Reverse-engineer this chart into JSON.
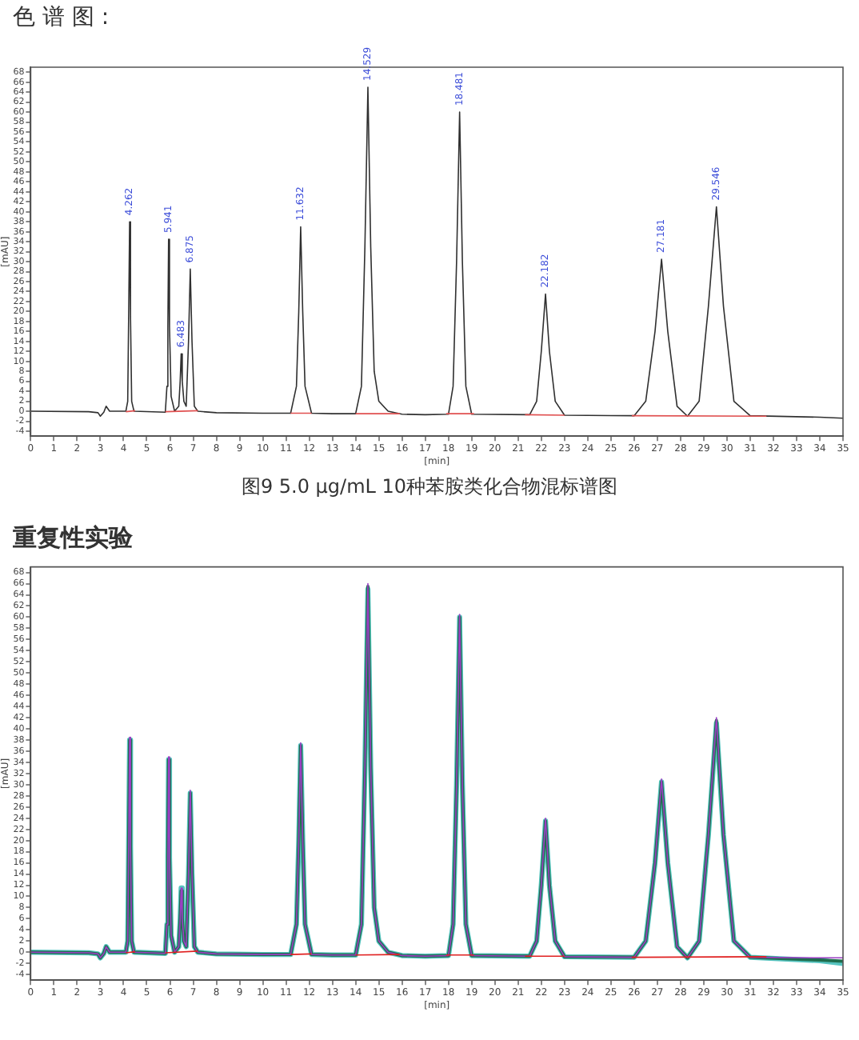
{
  "chart_data": [
    {
      "type": "line",
      "title": "色 谱 图 :",
      "xlabel": "[min]",
      "ylabel": "[mAU]",
      "xlim": [
        0,
        35
      ],
      "xticks": [
        0,
        1,
        2,
        3,
        4,
        5,
        6,
        7,
        8,
        9,
        10,
        11,
        12,
        13,
        14,
        15,
        16,
        17,
        18,
        19,
        20,
        21,
        22,
        23,
        24,
        25,
        26,
        27,
        28,
        29,
        30,
        31,
        32,
        33,
        34,
        35
      ],
      "ylim": [
        -5,
        69
      ],
      "yticks": [
        -4,
        -2,
        0,
        2,
        4,
        6,
        8,
        10,
        12,
        14,
        16,
        18,
        20,
        22,
        24,
        26,
        28,
        30,
        32,
        34,
        36,
        38,
        40,
        42,
        44,
        46,
        48,
        50,
        52,
        54,
        56,
        58,
        60,
        62,
        64,
        66,
        68
      ],
      "grid": false,
      "legend": false,
      "marker": "none",
      "line_style": "solid",
      "x": [
        0,
        2.5,
        2.9,
        3.0,
        3.15,
        3.25,
        3.4,
        4.1,
        4.18,
        4.22,
        4.262,
        4.3,
        4.35,
        4.45,
        5.8,
        5.87,
        5.91,
        5.941,
        5.98,
        6.05,
        6.2,
        6.38,
        6.44,
        6.483,
        6.53,
        6.6,
        6.7,
        6.8,
        6.875,
        6.95,
        7.05,
        7.2,
        8,
        10,
        11.2,
        11.45,
        11.55,
        11.632,
        11.72,
        11.82,
        12.1,
        13,
        14.0,
        14.25,
        14.4,
        14.529,
        14.65,
        14.8,
        15.0,
        15.4,
        16,
        17,
        18.0,
        18.2,
        18.35,
        18.481,
        18.6,
        18.75,
        19.0,
        21.5,
        21.8,
        22.0,
        22.182,
        22.35,
        22.6,
        23.0,
        26.0,
        26.5,
        26.9,
        27.181,
        27.45,
        27.85,
        28.3,
        28.8,
        29.2,
        29.546,
        29.85,
        30.3,
        31,
        34,
        35
      ],
      "series": [
        {
          "color": "#303030",
          "values": [
            0,
            -0.1,
            -0.3,
            -1,
            -0.2,
            1,
            0,
            0,
            2,
            19,
            38,
            19,
            2,
            0,
            -0.2,
            5,
            17,
            34.5,
            17,
            3,
            0,
            1,
            6,
            11.5,
            6,
            2,
            1,
            14,
            28.5,
            14,
            1,
            0,
            -0.3,
            -0.4,
            -0.4,
            5,
            20,
            37,
            20,
            5,
            -0.4,
            -0.5,
            -0.5,
            5,
            33,
            65,
            33,
            8,
            2,
            0,
            -0.6,
            -0.7,
            -0.6,
            5,
            30,
            60,
            30,
            5,
            -0.6,
            -0.7,
            2,
            12,
            23.5,
            12,
            2,
            -0.8,
            -0.9,
            2,
            16,
            30.5,
            16,
            1,
            -1,
            2,
            21,
            41,
            21,
            2,
            -0.9,
            -1.2,
            -1.4
          ]
        },
        {
          "color": "#e05050",
          "x": [
            4.1,
            4.5,
            4.8,
            5.8,
            7.2,
            7.5,
            11.2,
            12.1,
            12.5,
            14.0,
            15.9,
            16.5,
            17.9,
            19.1,
            20,
            21.3,
            23.0,
            24,
            25.9,
            31.7
          ],
          "values": [
            -0.1,
            0.1,
            null,
            -0.1,
            0.1,
            null,
            -0.4,
            -0.4,
            null,
            -0.5,
            -0.5,
            null,
            -0.5,
            -0.5,
            null,
            -0.7,
            -0.8,
            null,
            -0.9,
            -1.0
          ]
        }
      ],
      "annotations": [
        {
          "text": "4.262",
          "x": 4.262,
          "y": 38
        },
        {
          "text": "5.941",
          "x": 5.941,
          "y": 34.5
        },
        {
          "text": "6.483",
          "x": 6.483,
          "y": 11.5
        },
        {
          "text": "6.875",
          "x": 6.875,
          "y": 28.5
        },
        {
          "text": "11.632",
          "x": 11.632,
          "y": 37
        },
        {
          "text": "14.529",
          "x": 14.529,
          "y": 65
        },
        {
          "text": "18.481",
          "x": 18.481,
          "y": 60
        },
        {
          "text": "22.182",
          "x": 22.182,
          "y": 23.5
        },
        {
          "text": "27.181",
          "x": 27.181,
          "y": 30.5
        },
        {
          "text": "29.546",
          "x": 29.546,
          "y": 41
        },
        "图9  5.0 µg/mL 10种苯胺类化合物混标谱图"
      ]
    },
    {
      "type": "line",
      "title": "重复性实验",
      "xlabel": "[min]",
      "ylabel": "[mAU]",
      "xlim": [
        0,
        35
      ],
      "xticks": [
        0,
        1,
        2,
        3,
        4,
        5,
        6,
        7,
        8,
        9,
        10,
        11,
        12,
        13,
        14,
        15,
        16,
        17,
        18,
        19,
        20,
        21,
        22,
        23,
        24,
        25,
        26,
        27,
        28,
        29,
        30,
        31,
        32,
        33,
        34,
        35
      ],
      "ylim": [
        -5,
        69
      ],
      "yticks": [
        -4,
        -2,
        0,
        2,
        4,
        6,
        8,
        10,
        12,
        14,
        16,
        18,
        20,
        22,
        24,
        26,
        28,
        30,
        32,
        34,
        36,
        38,
        40,
        42,
        44,
        46,
        48,
        50,
        52,
        54,
        56,
        58,
        60,
        62,
        64,
        66,
        68
      ],
      "grid": false,
      "legend": false,
      "marker": "none",
      "line_style": "solid",
      "x": [
        0,
        2.5,
        2.9,
        3.0,
        3.15,
        3.25,
        3.4,
        4.1,
        4.18,
        4.22,
        4.262,
        4.3,
        4.35,
        4.45,
        5.8,
        5.87,
        5.91,
        5.941,
        5.98,
        6.05,
        6.2,
        6.38,
        6.44,
        6.483,
        6.53,
        6.6,
        6.7,
        6.8,
        6.875,
        6.95,
        7.05,
        7.2,
        8,
        10,
        11.2,
        11.45,
        11.55,
        11.632,
        11.72,
        11.82,
        12.1,
        13,
        14.0,
        14.25,
        14.4,
        14.529,
        14.65,
        14.8,
        15.0,
        15.4,
        16,
        17,
        18.0,
        18.2,
        18.35,
        18.481,
        18.6,
        18.75,
        19.0,
        21.5,
        21.8,
        22.0,
        22.182,
        22.35,
        22.6,
        23.0,
        26.0,
        26.5,
        26.9,
        27.181,
        27.45,
        27.85,
        28.3,
        28.8,
        29.2,
        29.546,
        29.85,
        30.3,
        31,
        34,
        35
      ],
      "series": [
        {
          "color": "#9b3fc4",
          "values": [
            0,
            -0.1,
            -0.3,
            -1,
            -0.2,
            1,
            0,
            0,
            2,
            19,
            38.5,
            19,
            2,
            0,
            -0.2,
            5,
            17,
            35,
            17,
            3,
            0,
            1,
            6,
            11.5,
            6,
            2,
            1,
            14,
            29,
            14,
            1,
            0,
            -0.3,
            -0.4,
            -0.4,
            5,
            20,
            37.5,
            20,
            5,
            -0.4,
            -0.5,
            -0.5,
            5,
            33,
            66,
            33,
            8,
            2,
            0,
            -0.6,
            -0.7,
            -0.6,
            5,
            30,
            60.5,
            30,
            5,
            -0.6,
            -0.7,
            2,
            12,
            24,
            12,
            2,
            -0.8,
            -0.9,
            2,
            16,
            31,
            16,
            1,
            -1,
            2,
            21,
            42,
            21,
            2,
            -0.9,
            -1.0,
            -1.0
          ]
        },
        {
          "color": "#1f6e4e",
          "values": [
            0,
            -0.1,
            -0.3,
            -1,
            -0.2,
            1,
            0,
            0,
            2,
            19,
            38,
            19,
            2,
            0,
            -0.2,
            5,
            17,
            34.5,
            17,
            3,
            0,
            1,
            6,
            11,
            6,
            2,
            1,
            14,
            28.5,
            14,
            1,
            0,
            -0.3,
            -0.4,
            -0.4,
            5,
            20,
            37,
            20,
            5,
            -0.4,
            -0.5,
            -0.5,
            5,
            33,
            65.5,
            33,
            8,
            2,
            0,
            -0.6,
            -0.7,
            -0.6,
            5,
            30,
            60,
            30,
            5,
            -0.6,
            -0.7,
            2,
            12,
            23.5,
            12,
            2,
            -0.8,
            -0.9,
            2,
            16,
            30.5,
            16,
            1,
            -1,
            2,
            21,
            41.5,
            21,
            2,
            -0.9,
            -1.4,
            -1.6
          ]
        },
        {
          "color": "#56c4c0",
          "values": [
            0,
            -0.1,
            -0.3,
            -1,
            -0.2,
            1,
            0,
            0,
            2,
            19,
            38,
            19,
            2,
            0,
            -0.2,
            5,
            17,
            34.5,
            17,
            3,
            0,
            1,
            6,
            11.5,
            6,
            2,
            1,
            14,
            28.5,
            14,
            1,
            0,
            -0.3,
            -0.4,
            -0.4,
            5,
            20,
            37,
            20,
            5,
            -0.4,
            -0.5,
            -0.5,
            5,
            33,
            65,
            33,
            8,
            2,
            0,
            -0.6,
            -0.7,
            -0.6,
            5,
            30,
            60,
            30,
            5,
            -0.6,
            -0.7,
            2,
            12,
            23.5,
            12,
            2,
            -0.8,
            -0.9,
            2,
            16,
            30.5,
            16,
            1,
            -1,
            2,
            21,
            41,
            21,
            2,
            -0.9,
            -1.5,
            -2.0
          ]
        },
        {
          "color": "#e02020",
          "x": [
            4.1,
            4.5,
            4.8,
            5.8,
            7.2,
            7.5,
            11.2,
            12.1,
            12.5,
            14.0,
            15.9,
            16.5,
            17.9,
            19.1,
            20,
            21.3,
            23.0,
            24,
            25.9,
            31.7
          ],
          "values": [
            -0.1,
            0.1,
            null,
            -0.1,
            0.2,
            null,
            -0.4,
            -0.3,
            null,
            -0.5,
            -0.4,
            null,
            -0.5,
            -0.5,
            null,
            -0.7,
            -0.7,
            null,
            -0.9,
            -0.8
          ]
        }
      ]
    }
  ]
}
